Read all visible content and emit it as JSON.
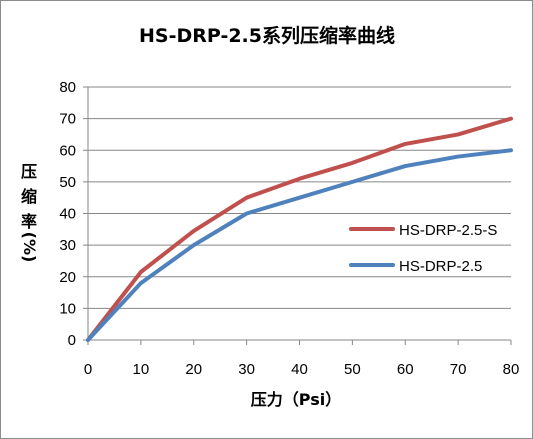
{
  "chart_data": {
    "type": "line",
    "title": "HS-DRP-2.5系列压缩率曲线",
    "xlabel": "压力（Psi）",
    "ylabel_chars": [
      "压",
      "缩",
      "率",
      "(%)"
    ],
    "x": [
      0,
      10,
      20,
      30,
      40,
      50,
      60,
      70,
      80
    ],
    "xlim": [
      0,
      80
    ],
    "ylim": [
      0,
      80
    ],
    "x_ticks": [
      0,
      10,
      20,
      30,
      40,
      50,
      60,
      70,
      80
    ],
    "y_ticks": [
      0,
      10,
      20,
      30,
      40,
      50,
      60,
      70,
      80
    ],
    "grid": true,
    "legend_position": "right",
    "series": [
      {
        "name": "HS-DRP-2.5-S",
        "color": "#c0504d",
        "values": [
          0,
          21.5,
          34.5,
          45,
          51,
          56,
          62,
          65,
          70
        ]
      },
      {
        "name": "HS-DRP-2.5",
        "color": "#4f81bd",
        "values": [
          0,
          18,
          30,
          40,
          45,
          50,
          55,
          58,
          60
        ]
      }
    ]
  }
}
